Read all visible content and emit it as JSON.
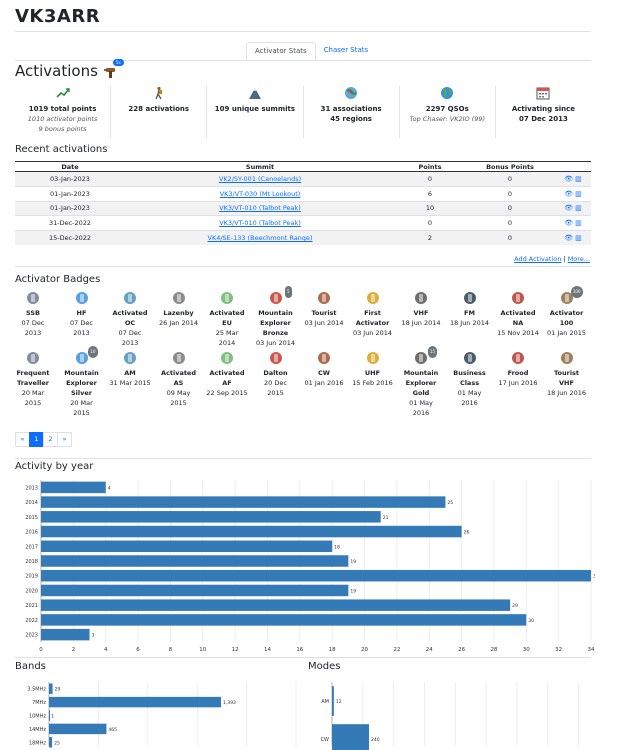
{
  "callsign": "VK3ARR",
  "tabs": [
    {
      "label": "Activator Stats",
      "active": true
    },
    {
      "label": "Chaser Stats",
      "active": false
    }
  ],
  "activations_heading": "Activations",
  "activations_badge": "5x",
  "stats": [
    {
      "icon": "chart-up-icon",
      "lines": [
        "1019 total points"
      ],
      "subs": [
        "1010 activator points",
        "9 bonus points"
      ]
    },
    {
      "icon": "hiker-icon",
      "lines": [
        "228 activations"
      ],
      "subs": []
    },
    {
      "icon": "mountain-icon",
      "lines": [
        "109 unique summits"
      ],
      "subs": []
    },
    {
      "icon": "pin-icon",
      "lines": [
        "31 associations",
        "45 regions"
      ],
      "subs": []
    },
    {
      "icon": "globe-icon",
      "lines": [
        "2297 QSOs"
      ],
      "subs": [
        "Top Chaser: VK2IO (99)"
      ]
    },
    {
      "icon": "calendar-icon",
      "lines": [
        "Activating since",
        "07 Dec 2013"
      ],
      "subs": []
    }
  ],
  "recent_heading": "Recent activations",
  "recent_columns": [
    "Date",
    "Summit",
    "Points",
    "Bonus Points"
  ],
  "recent_rows": [
    {
      "date": "03-Jan-2023",
      "summit": "VK2/SY-001 (Canoelands)",
      "points": "0",
      "bonus": "0"
    },
    {
      "date": "01-Jan-2023",
      "summit": "VK3/VT-030 (Mt Lookout)",
      "points": "6",
      "bonus": "0"
    },
    {
      "date": "01-Jan-2023",
      "summit": "VK3/VT-010 (Talbot Peak)",
      "points": "10",
      "bonus": "0"
    },
    {
      "date": "31-Dec-2022",
      "summit": "VK3/VT-010 (Talbot Peak)",
      "points": "0",
      "bonus": "0"
    },
    {
      "date": "15-Dec-2022",
      "summit": "VK4/SE-133 (Beechmont Range)",
      "points": "2",
      "bonus": "0"
    }
  ],
  "add_activation": "Add Activation",
  "links_sep": "|",
  "more": "More...",
  "badges_heading": "Activator Badges",
  "badges": [
    {
      "name": [
        "SSB"
      ],
      "date": [
        "07 Dec",
        "2013"
      ],
      "icon": "microphone-icon",
      "count": ""
    },
    {
      "name": [
        "HF"
      ],
      "date": [
        "07 Dec",
        "2013"
      ],
      "icon": "globe-icon",
      "count": ""
    },
    {
      "name": [
        "Activated",
        "OC"
      ],
      "date": [
        "07 Dec",
        "2013"
      ],
      "icon": "map-oceania-icon",
      "count": ""
    },
    {
      "name": [
        "Lazenby"
      ],
      "date": [
        "26 Jan 2014"
      ],
      "icon": "person-icon",
      "count": ""
    },
    {
      "name": [
        "Activated",
        "EU"
      ],
      "date": [
        "25 Mar",
        "2014"
      ],
      "icon": "map-europe-icon",
      "count": ""
    },
    {
      "name": [
        "Mountain",
        "Explorer",
        "Bronze"
      ],
      "date": [
        "03 Jun 2014"
      ],
      "icon": "mountain-explorer-icon",
      "count": "5"
    },
    {
      "name": [
        "Tourist"
      ],
      "date": [
        "03 Jun 2014"
      ],
      "icon": "tourist-icon",
      "count": ""
    },
    {
      "name": [
        "First",
        "Activator"
      ],
      "date": [
        "03 Jun 2014"
      ],
      "icon": "medal-icon",
      "count": ""
    },
    {
      "name": [
        "VHF"
      ],
      "date": [
        "18 Jun 2014"
      ],
      "icon": "antenna-icon",
      "count": ""
    },
    {
      "name": [
        "FM"
      ],
      "date": [
        "18 Jun 2014"
      ],
      "icon": "radio-icon",
      "count": ""
    },
    {
      "name": [
        "Activated",
        "NA"
      ],
      "date": [
        "15 Nov 2014"
      ],
      "icon": "map-na-icon",
      "count": ""
    },
    {
      "name": [
        "Activator",
        "100"
      ],
      "date": [
        "01 Jan 2015"
      ],
      "icon": "activator-100-icon",
      "count": "100"
    },
    {
      "name": [
        "Frequent",
        "Traveller"
      ],
      "date": [
        "20 Mar",
        "2015"
      ],
      "icon": "traveller-icon",
      "count": ""
    },
    {
      "name": [
        "Mountain",
        "Explorer",
        "Silver"
      ],
      "date": [
        "20 Mar",
        "2015"
      ],
      "icon": "mountain-explorer-icon",
      "count": "10"
    },
    {
      "name": [
        "AM"
      ],
      "date": [
        "31 Mar 2015"
      ],
      "icon": "am-icon",
      "count": ""
    },
    {
      "name": [
        "Activated",
        "AS"
      ],
      "date": [
        "09 May",
        "2015"
      ],
      "icon": "map-asia-icon",
      "count": ""
    },
    {
      "name": [
        "Activated",
        "AF"
      ],
      "date": [
        "22 Sep 2015"
      ],
      "icon": "map-africa-icon",
      "count": ""
    },
    {
      "name": [
        "Dalton"
      ],
      "date": [
        "20 Dec",
        "2015"
      ],
      "icon": "person-icon",
      "count": ""
    },
    {
      "name": [
        "CW"
      ],
      "date": [
        "01 Jan 2016"
      ],
      "icon": "morse-key-icon",
      "count": ""
    },
    {
      "name": [
        "UHF"
      ],
      "date": [
        "15 Feb 2016"
      ],
      "icon": "antenna-icon",
      "count": ""
    },
    {
      "name": [
        "Mountain",
        "Explorer",
        "Gold"
      ],
      "date": [
        "01 May",
        "2016"
      ],
      "icon": "mountain-explorer-icon",
      "count": "15"
    },
    {
      "name": [
        "Business",
        "Class"
      ],
      "date": [
        "01 May",
        "2016"
      ],
      "icon": "plane-icon",
      "count": ""
    },
    {
      "name": [
        "Frood"
      ],
      "date": [
        "17 Jun 2016"
      ],
      "icon": "towel-icon",
      "count": ""
    },
    {
      "name": [
        "Tourist",
        "VHF"
      ],
      "date": [
        "18 Jun 2016"
      ],
      "icon": "tourist-icon",
      "count": ""
    }
  ],
  "pager": [
    "«",
    "1",
    "2",
    "»"
  ],
  "colors": {
    "bar": "#337ab7",
    "link": "#0d6efd"
  },
  "chart_data": [
    {
      "type": "bar",
      "orientation": "horizontal",
      "title": "Activity by year",
      "categories": [
        "2013",
        "2014",
        "2015",
        "2016",
        "2017",
        "2018",
        "2019",
        "2020",
        "2021",
        "2022",
        "2023"
      ],
      "values": [
        4,
        25,
        21,
        26,
        18,
        19,
        34,
        19,
        29,
        30,
        3
      ],
      "xlim": [
        0,
        34
      ],
      "xticks": [
        0,
        2,
        4,
        6,
        8,
        10,
        12,
        14,
        16,
        18,
        20,
        22,
        24,
        26,
        28,
        30,
        32,
        34
      ],
      "grid": true
    },
    {
      "type": "bar",
      "orientation": "horizontal",
      "title": "Bands",
      "categories": [
        "3.5MHz",
        "7MHz",
        "10MHz",
        "14MHz",
        "18MHz"
      ],
      "values": [
        29,
        1393,
        1,
        465,
        25
      ],
      "value_labels": [
        "29",
        "1,393",
        "1",
        "465",
        "25"
      ],
      "xlim": [
        0,
        2000
      ],
      "grid": true
    },
    {
      "type": "bar",
      "orientation": "horizontal",
      "title": "Modes",
      "categories": [
        "AM",
        "CW"
      ],
      "values": [
        12,
        240
      ],
      "xlim": [
        0,
        1700
      ],
      "grid": true
    }
  ]
}
